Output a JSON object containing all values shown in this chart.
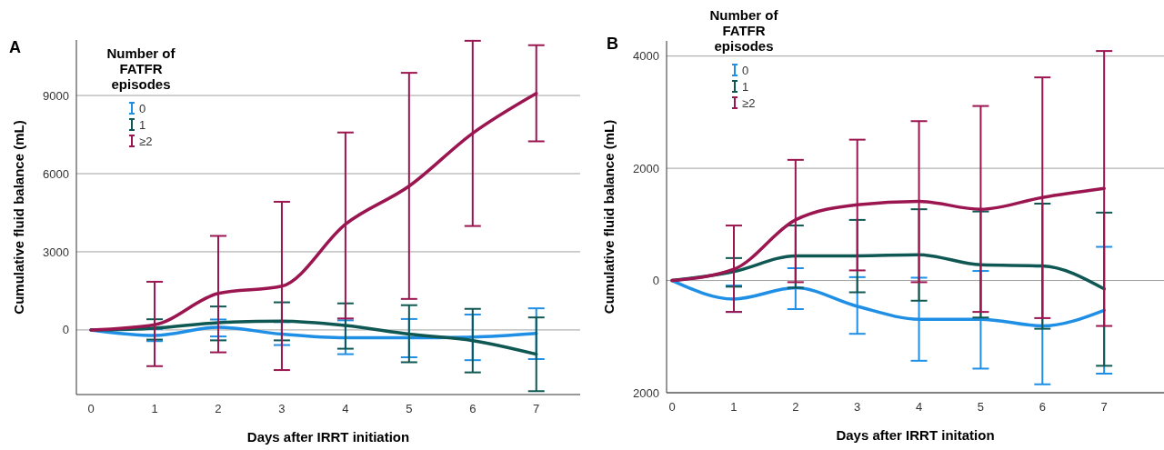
{
  "chart_data": [
    {
      "type": "line",
      "title": "A",
      "xlabel": "Days after IRRT initiation",
      "ylabel": "Cumulative fluid balance (mL)",
      "legend_title": "Number of FATFR episodes",
      "legend": "top left",
      "grid": "y",
      "marker": "none",
      "line_style": "solid",
      "x": [
        0,
        1,
        2,
        3,
        4,
        5,
        6,
        7
      ],
      "xlim": [
        -0.23,
        7.69
      ],
      "xticks": [
        0,
        1,
        2,
        3,
        4,
        5,
        6,
        7
      ],
      "ylim": [
        -2480,
        11130
      ],
      "yticks": [
        0,
        3000,
        6000,
        9000
      ],
      "series": [
        {
          "name": "0",
          "color": "#1f8fe5",
          "values": [
            0,
            -210,
            100,
            -160,
            -300,
            -300,
            -270,
            -130
          ],
          "errors": [
            null,
            [
              -430,
              30
            ],
            [
              -250,
              400
            ],
            [
              -580,
              300
            ],
            [
              -930,
              370
            ],
            [
              -1050,
              420
            ],
            [
              -1160,
              590
            ],
            [
              -1120,
              830
            ]
          ]
        },
        {
          "name": "1",
          "color": "#0e5752",
          "values": [
            0,
            70,
            280,
            340,
            170,
            -160,
            -410,
            -930
          ],
          "errors": [
            null,
            [
              -370,
              410
            ],
            [
              -400,
              900
            ],
            [
              -400,
              1060
            ],
            [
              -720,
              1020
            ],
            [
              -1240,
              950
            ],
            [
              -1630,
              810
            ],
            [
              -2350,
              480
            ]
          ]
        },
        {
          "name": "≥2",
          "color": "#9b1650",
          "values": [
            0,
            200,
            1400,
            1680,
            4060,
            5520,
            7550,
            9080
          ],
          "errors": [
            null,
            [
              -1390,
              1850
            ],
            [
              -860,
              3610
            ],
            [
              -1540,
              4920
            ],
            [
              440,
              7580
            ],
            [
              1190,
              9870
            ],
            [
              3990,
              11100
            ],
            [
              7240,
              10930
            ]
          ]
        }
      ]
    },
    {
      "type": "line",
      "title": "B",
      "xlabel": "Days after IRRT initation",
      "ylabel": "Cumulative fluid balance (mL)",
      "legend_title": "Number of FATFR episodes",
      "legend": "top left",
      "grid": "y",
      "marker": "none",
      "line_style": "solid",
      "x": [
        0,
        1,
        2,
        3,
        4,
        5,
        6,
        7
      ],
      "xlim": [
        -0.09,
        7.97
      ],
      "xticks": [
        0,
        1,
        2,
        3,
        4,
        5,
        6,
        7
      ],
      "ylim": [
        -2000,
        4270
      ],
      "yticks": [
        {
          "value": -2000,
          "label": "2000"
        },
        0,
        2000,
        4000
      ],
      "series": [
        {
          "name": "0",
          "color": "#1f8fe5",
          "values": [
            0,
            -330,
            -130,
            -460,
            -690,
            -690,
            -810,
            -530
          ],
          "errors": [
            null,
            [
              -560,
              -90
            ],
            [
              -510,
              220
            ],
            [
              -950,
              60
            ],
            [
              -1430,
              50
            ],
            [
              -1570,
              170
            ],
            [
              -1850,
              250
            ],
            [
              -1660,
              600
            ]
          ]
        },
        {
          "name": "1",
          "color": "#0e5752",
          "values": [
            0,
            160,
            440,
            440,
            460,
            280,
            260,
            -150
          ],
          "errors": [
            null,
            [
              -110,
              400
            ],
            [
              -130,
              980
            ],
            [
              -210,
              1080
            ],
            [
              -360,
              1270
            ],
            [
              -660,
              1230
            ],
            [
              -860,
              1370
            ],
            [
              -1520,
              1210
            ]
          ]
        },
        {
          "name": "≥2",
          "color": "#9b1650",
          "values": [
            0,
            200,
            1080,
            1350,
            1410,
            1270,
            1480,
            1640
          ],
          "errors": [
            null,
            [
              -560,
              980
            ],
            [
              -30,
              2150
            ],
            [
              180,
              2510
            ],
            [
              -30,
              2840
            ],
            [
              -560,
              3110
            ],
            [
              -670,
              3620
            ],
            [
              -810,
              4090
            ]
          ]
        }
      ]
    }
  ]
}
